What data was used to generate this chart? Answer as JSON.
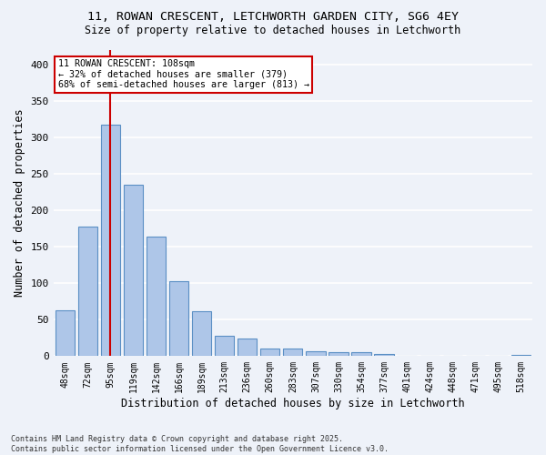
{
  "title_line1": "11, ROWAN CRESCENT, LETCHWORTH GARDEN CITY, SG6 4EY",
  "title_line2": "Size of property relative to detached houses in Letchworth",
  "xlabel": "Distribution of detached houses by size in Letchworth",
  "ylabel": "Number of detached properties",
  "categories": [
    "48sqm",
    "72sqm",
    "95sqm",
    "119sqm",
    "142sqm",
    "166sqm",
    "189sqm",
    "213sqm",
    "236sqm",
    "260sqm",
    "283sqm",
    "307sqm",
    "330sqm",
    "354sqm",
    "377sqm",
    "401sqm",
    "424sqm",
    "448sqm",
    "471sqm",
    "495sqm",
    "518sqm"
  ],
  "values": [
    63,
    178,
    317,
    235,
    164,
    103,
    62,
    28,
    24,
    10,
    10,
    7,
    6,
    5,
    3,
    1,
    1,
    0,
    1,
    1,
    2
  ],
  "bar_color": "#aec6e8",
  "bar_edge_color": "#5a8fc4",
  "vline_x_index": 2.0,
  "vline_color": "#cc0000",
  "annotation_text": "11 ROWAN CRESCENT: 108sqm\n← 32% of detached houses are smaller (379)\n68% of semi-detached houses are larger (813) →",
  "annotation_box_color": "#ffffff",
  "annotation_box_edge_color": "#cc0000",
  "ylim": [
    0,
    420
  ],
  "yticks": [
    0,
    50,
    100,
    150,
    200,
    250,
    300,
    350,
    400
  ],
  "bg_color": "#eef2f9",
  "grid_color": "#ffffff",
  "footer_text": "Contains HM Land Registry data © Crown copyright and database right 2025.\nContains public sector information licensed under the Open Government Licence v3.0.",
  "figsize": [
    6.0,
    5.0
  ],
  "dpi": 100
}
